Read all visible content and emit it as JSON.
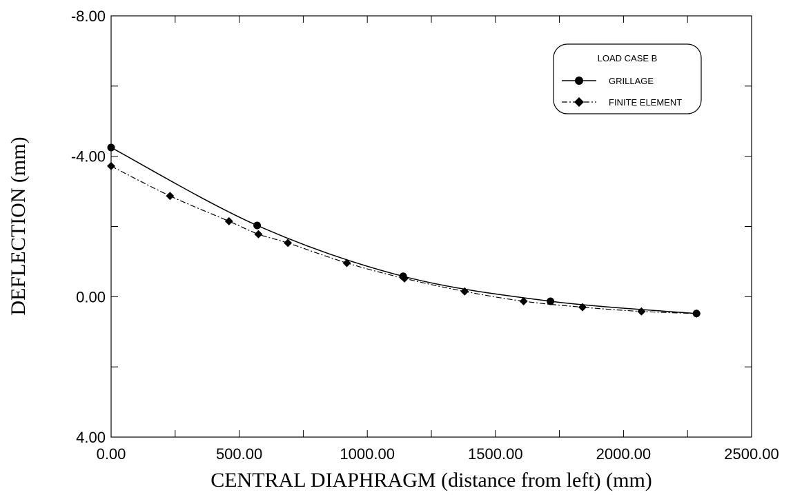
{
  "chart_data": {
    "type": "line",
    "title": "",
    "xlabel": "CENTRAL DIAPHRAGM (distance from left) (mm)",
    "ylabel": "DEFLECTION (mm)",
    "xlim": [
      0,
      2500
    ],
    "ylim": [
      4,
      -8
    ],
    "y_axis_inverted": true,
    "grid": false,
    "x_ticks": [
      "0.00",
      "500.00",
      "1000.00",
      "1500.00",
      "2000.00",
      "2500.00"
    ],
    "x_tick_values": [
      0,
      500,
      1000,
      1500,
      2000,
      2500
    ],
    "y_ticks": [
      "-8.00",
      "-4.00",
      "0.00",
      "4.00"
    ],
    "y_tick_values": [
      -8,
      -4,
      0,
      4
    ],
    "legend": {
      "title": "LOAD CASE B",
      "position": "top-right"
    },
    "series": [
      {
        "name": "GRILLAGE",
        "marker": "circle",
        "line_style": "solid",
        "points": [
          {
            "x": 0,
            "y": -4.25
          },
          {
            "x": 570,
            "y": -2.03
          },
          {
            "x": 1140,
            "y": -0.58
          },
          {
            "x": 1715,
            "y": 0.13
          },
          {
            "x": 2285,
            "y": 0.48
          }
        ]
      },
      {
        "name": "FINITE ELEMENT",
        "marker": "diamond",
        "line_style": "dash-dot",
        "points": [
          {
            "x": 0,
            "y": -3.72
          },
          {
            "x": 230,
            "y": -2.87
          },
          {
            "x": 460,
            "y": -2.15
          },
          {
            "x": 575,
            "y": -1.78
          },
          {
            "x": 690,
            "y": -1.53
          },
          {
            "x": 920,
            "y": -0.96
          },
          {
            "x": 1145,
            "y": -0.52
          },
          {
            "x": 1380,
            "y": -0.15
          },
          {
            "x": 1610,
            "y": 0.13
          },
          {
            "x": 1840,
            "y": 0.3
          },
          {
            "x": 2070,
            "y": 0.42
          },
          {
            "x": 2285,
            "y": 0.48
          }
        ]
      }
    ]
  }
}
